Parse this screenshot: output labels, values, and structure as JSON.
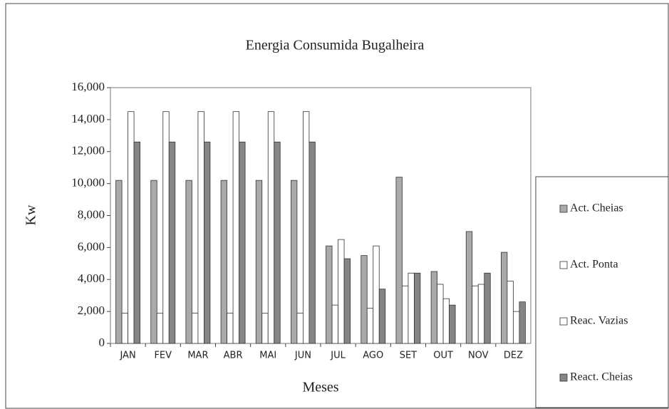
{
  "chart_data": {
    "type": "bar",
    "title": "Energia Consumida Bugalheira",
    "x_label": "Meses",
    "y_label": "Kw",
    "categories": [
      "JAN",
      "FEV",
      "MAR",
      "ABR",
      "MAI",
      "JUN",
      "JUL",
      "AGO",
      "SET",
      "OUT",
      "NOV",
      "DEZ"
    ],
    "series": [
      {
        "name": "Act. Cheias",
        "color": "#a9a9a9",
        "values": [
          10200,
          10200,
          10200,
          10200,
          10200,
          10200,
          6100,
          5500,
          10400,
          4500,
          7000,
          5700
        ]
      },
      {
        "name": "Act. Ponta",
        "color": "#ffffff",
        "values": [
          1900,
          1900,
          1900,
          1900,
          1900,
          1900,
          2400,
          2200,
          3600,
          3700,
          3600,
          3900
        ]
      },
      {
        "name": "Reac. Vazias",
        "color": "#ffffff",
        "values": [
          14500,
          14500,
          14500,
          14500,
          14500,
          14500,
          6500,
          6100,
          4400,
          2800,
          3700,
          2000
        ]
      },
      {
        "name": "React. Cheias",
        "color": "#858585",
        "values": [
          12600,
          12600,
          12600,
          12600,
          12600,
          12600,
          5300,
          3400,
          4400,
          2400,
          4400,
          2600
        ]
      }
    ],
    "ylim": [
      0,
      16000
    ],
    "yticks": [
      0,
      {
        "value": 2000,
        "label": "2,000"
      },
      {
        "value": 4000,
        "label": "4,000"
      },
      {
        "value": 6000,
        "label": "6,000"
      },
      {
        "value": 8000,
        "label": "8,000"
      },
      {
        "value": 10000,
        "label": "10,000"
      },
      {
        "value": 12000,
        "label": "12,000"
      },
      {
        "value": 14000,
        "label": "14,000"
      },
      {
        "value": 16000,
        "label": "16,000"
      }
    ],
    "grid": false,
    "legend": "right"
  }
}
